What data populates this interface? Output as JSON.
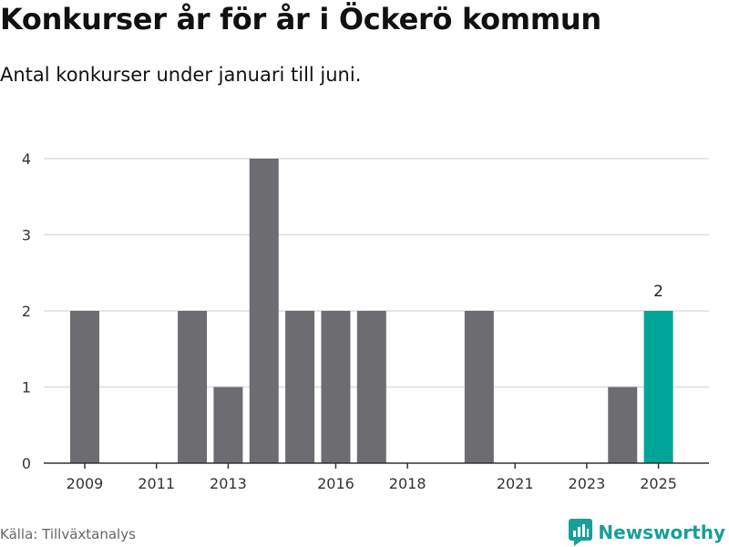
{
  "header": {
    "title": "Konkurser år för år i Öckerö kommun",
    "subtitle": "Antal konkurser under januari till juni."
  },
  "footer": {
    "source": "Källa: Tillväxtanalys",
    "brand": "Newsworthy",
    "brand_icon": "newsworthy-logo-icon"
  },
  "colors": {
    "bar": "#6d6c71",
    "highlight": "#00a59a",
    "grid": "#dddddd",
    "axis": "#333333",
    "brand": "#1a9e9a"
  },
  "chart_data": {
    "type": "bar",
    "categories": [
      2009,
      2010,
      2011,
      2012,
      2013,
      2014,
      2015,
      2016,
      2017,
      2018,
      2019,
      2020,
      2021,
      2022,
      2023,
      2024,
      2025
    ],
    "values": [
      2,
      0,
      0,
      2,
      1,
      4,
      2,
      2,
      2,
      0,
      0,
      2,
      0,
      0,
      0,
      1,
      2
    ],
    "highlight_index": 16,
    "data_labels": [
      {
        "index": 16,
        "text": "2"
      }
    ],
    "x_ticks": [
      2009,
      2011,
      2013,
      2016,
      2018,
      2021,
      2023,
      2025
    ],
    "y_ticks": [
      0,
      1,
      2,
      3,
      4
    ],
    "ylim": [
      0,
      4
    ],
    "grid": true
  }
}
